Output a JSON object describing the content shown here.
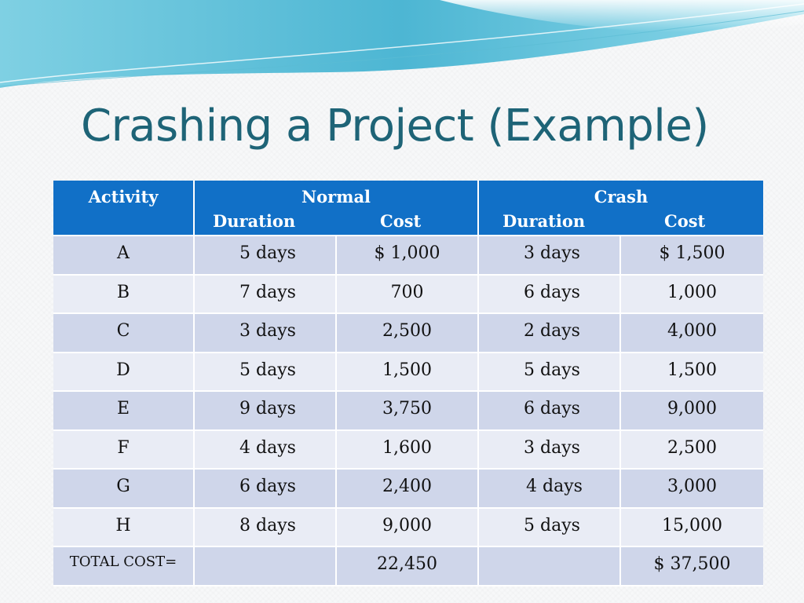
{
  "slide": {
    "title": "Crashing a Project (Example)"
  },
  "table": {
    "header": {
      "activity": "Activity",
      "normal": "Normal",
      "crash": "Crash",
      "duration": "Duration",
      "cost": "Cost"
    },
    "rows": [
      {
        "activity": "A",
        "normal_duration": "5 days",
        "normal_cost": "$ 1,000",
        "crash_duration": "3 days",
        "crash_cost": "$ 1,500"
      },
      {
        "activity": "B",
        "normal_duration": "7 days",
        "normal_cost": "700",
        "crash_duration": "6 days",
        "crash_cost": "1,000"
      },
      {
        "activity": "C",
        "normal_duration": "3 days",
        "normal_cost": "2,500",
        "crash_duration": "2 days",
        "crash_cost": "4,000"
      },
      {
        "activity": "D",
        "normal_duration": "5 days",
        "normal_cost": "1,500",
        "crash_duration": "5 days",
        "crash_cost": "1,500"
      },
      {
        "activity": "E",
        "normal_duration": "9 days",
        "normal_cost": "3,750",
        "crash_duration": "6 days",
        "crash_cost": "9,000"
      },
      {
        "activity": "F",
        "normal_duration": "4 days",
        "normal_cost": "1,600",
        "crash_duration": "3 days",
        "crash_cost": "2,500"
      },
      {
        "activity": "G",
        "normal_duration": "6 days",
        "normal_cost": "2,400",
        "crash_duration": "4 days",
        "crash_cost": "3,000"
      },
      {
        "activity": "H",
        "normal_duration": "8 days",
        "normal_cost": "9,000",
        "crash_duration": "5 days",
        "crash_cost": "15,000"
      }
    ],
    "total": {
      "label": "TOTAL COST=",
      "normal_duration": "",
      "normal_cost": "22,450",
      "crash_duration": "",
      "crash_cost": "$ 37,500"
    }
  },
  "colors": {
    "title": "#1e6477",
    "header_bg": "#1170c7",
    "row_dark": "#cfd6ea",
    "row_light": "#e9ecf5",
    "wave": "#5fc0d8"
  }
}
